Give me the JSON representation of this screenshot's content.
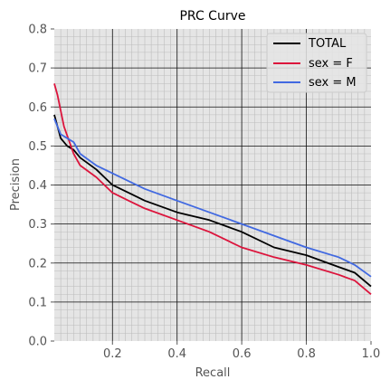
{
  "chart_data": {
    "type": "line",
    "title": "PRC Curve",
    "xlabel": "Recall",
    "ylabel": "Precision",
    "xlim": [
      0.02,
      1.0
    ],
    "ylim": [
      0.0,
      0.8
    ],
    "xticks": [
      0.2,
      0.4,
      0.6,
      0.8,
      1.0
    ],
    "xtick_labels": [
      "0.2",
      "0.4",
      "0.6",
      "0.8",
      "1.0"
    ],
    "yticks": [
      0.0,
      0.1,
      0.2,
      0.3,
      0.4,
      0.5,
      0.6,
      0.7,
      0.8
    ],
    "ytick_labels": [
      "0.0",
      "0.1",
      "0.2",
      "0.3",
      "0.4",
      "0.5",
      "0.6",
      "0.7",
      "0.8"
    ],
    "grid": true,
    "legend_position": "top-right",
    "series": [
      {
        "name": "TOTAL",
        "color": "#000000",
        "x": [
          0.02,
          0.04,
          0.06,
          0.08,
          0.1,
          0.15,
          0.2,
          0.25,
          0.3,
          0.4,
          0.5,
          0.6,
          0.7,
          0.8,
          0.9,
          0.95,
          1.0
        ],
        "y": [
          0.58,
          0.52,
          0.5,
          0.49,
          0.47,
          0.44,
          0.4,
          0.38,
          0.36,
          0.33,
          0.31,
          0.28,
          0.24,
          0.22,
          0.19,
          0.175,
          0.14
        ]
      },
      {
        "name": "sex = F",
        "color": "#dc143c",
        "x": [
          0.02,
          0.03,
          0.05,
          0.08,
          0.1,
          0.15,
          0.2,
          0.25,
          0.3,
          0.4,
          0.5,
          0.6,
          0.7,
          0.8,
          0.9,
          0.95,
          1.0
        ],
        "y": [
          0.66,
          0.63,
          0.55,
          0.48,
          0.45,
          0.42,
          0.38,
          0.36,
          0.34,
          0.31,
          0.28,
          0.24,
          0.215,
          0.195,
          0.17,
          0.155,
          0.12
        ]
      },
      {
        "name": "sex = M",
        "color": "#4169e1",
        "x": [
          0.02,
          0.04,
          0.06,
          0.08,
          0.1,
          0.15,
          0.2,
          0.25,
          0.3,
          0.4,
          0.5,
          0.6,
          0.7,
          0.8,
          0.9,
          0.95,
          1.0
        ],
        "y": [
          0.57,
          0.53,
          0.52,
          0.51,
          0.48,
          0.45,
          0.43,
          0.41,
          0.39,
          0.36,
          0.33,
          0.3,
          0.27,
          0.24,
          0.215,
          0.195,
          0.165
        ]
      }
    ]
  }
}
